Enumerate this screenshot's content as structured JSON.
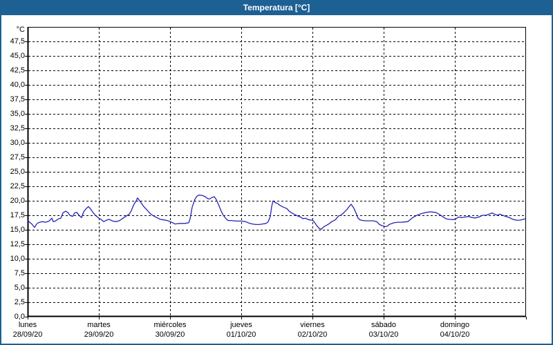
{
  "window": {
    "title": "Temperatura [°C]"
  },
  "colors": {
    "titlebar_bg": "#1d6094",
    "titlebar_text": "#ffffff",
    "window_border": "#1d6094",
    "plot_border": "#000000",
    "grid": "#000000",
    "series_line": "#2121b5",
    "label_text": "#000000",
    "plot_bg": "#ffffff"
  },
  "y_axis": {
    "unit_label": "°C",
    "min": 0,
    "max": 50,
    "tick_step": 2.5,
    "tick_labels": [
      "0,0",
      "2,5",
      "5,0",
      "7,5",
      "10,0",
      "12,5",
      "15,0",
      "17,5",
      "20,0",
      "22,5",
      "25,0",
      "27,5",
      "30,0",
      "32,5",
      "35,0",
      "37,5",
      "40,0",
      "42,5",
      "45,0",
      "47,5"
    ]
  },
  "x_axis": {
    "days": [
      {
        "name": "lunes",
        "date": "28/09/20"
      },
      {
        "name": "martes",
        "date": "29/09/20"
      },
      {
        "name": "miércoles",
        "date": "30/09/20"
      },
      {
        "name": "jueves",
        "date": "01/10/20"
      },
      {
        "name": "viernes",
        "date": "02/10/20"
      },
      {
        "name": "sábado",
        "date": "03/10/20"
      },
      {
        "name": "domingo",
        "date": "04/10/20"
      }
    ]
  },
  "chart_data": {
    "type": "line",
    "title": "Temperatura [°C]",
    "xlabel": "",
    "ylabel": "°C",
    "ylim": [
      0,
      50
    ],
    "y_gridline_step": 2.5,
    "grid": true,
    "legend": false,
    "x_span_days": 7,
    "x_start_label": "lunes 28/09/20",
    "series": [
      {
        "name": "Temperatura",
        "x_unit": "days",
        "points": [
          [
            0,
            16.6
          ],
          [
            0.029,
            16.3
          ],
          [
            0.058,
            16
          ],
          [
            0.097,
            15.4
          ],
          [
            0.126,
            16
          ],
          [
            0.155,
            16.25
          ],
          [
            0.204,
            16.4
          ],
          [
            0.252,
            16.3
          ],
          [
            0.301,
            16.5
          ],
          [
            0.34,
            17
          ],
          [
            0.359,
            16.4
          ],
          [
            0.388,
            16.5
          ],
          [
            0.437,
            16.9
          ],
          [
            0.466,
            17
          ],
          [
            0.495,
            17.9
          ],
          [
            0.534,
            18.2
          ],
          [
            0.563,
            18
          ],
          [
            0.592,
            17.5
          ],
          [
            0.631,
            17.3
          ],
          [
            0.66,
            17.9
          ],
          [
            0.689,
            18
          ],
          [
            0.728,
            17.4
          ],
          [
            0.757,
            17.1
          ],
          [
            0.786,
            18.1
          ],
          [
            0.825,
            18.7
          ],
          [
            0.854,
            19
          ],
          [
            0.883,
            18.6
          ],
          [
            0.922,
            17.9
          ],
          [
            0.951,
            17.5
          ],
          [
            1,
            17
          ],
          [
            1.029,
            16.8
          ],
          [
            1.068,
            16.4
          ],
          [
            1.117,
            16.7
          ],
          [
            1.146,
            16.8
          ],
          [
            1.194,
            16.5
          ],
          [
            1.243,
            16.4
          ],
          [
            1.291,
            16.6
          ],
          [
            1.34,
            17
          ],
          [
            1.388,
            17.4
          ],
          [
            1.427,
            17.7
          ],
          [
            1.456,
            18.3
          ],
          [
            1.485,
            19.2
          ],
          [
            1.524,
            20
          ],
          [
            1.544,
            20.5
          ],
          [
            1.573,
            20
          ],
          [
            1.602,
            19.5
          ],
          [
            1.631,
            19
          ],
          [
            1.67,
            18.5
          ],
          [
            1.699,
            18.1
          ],
          [
            1.728,
            17.7
          ],
          [
            1.767,
            17.4
          ],
          [
            1.816,
            17.1
          ],
          [
            1.864,
            16.8
          ],
          [
            1.913,
            16.7
          ],
          [
            1.961,
            16.6
          ],
          [
            2,
            16.4
          ],
          [
            2.039,
            16.2
          ],
          [
            2.068,
            16
          ],
          [
            2.136,
            16.1
          ],
          [
            2.204,
            16.1
          ],
          [
            2.262,
            16.2
          ],
          [
            2.282,
            16.9
          ],
          [
            2.311,
            18.9
          ],
          [
            2.35,
            20.3
          ],
          [
            2.379,
            20.8
          ],
          [
            2.408,
            21
          ],
          [
            2.456,
            20.9
          ],
          [
            2.495,
            20.7
          ],
          [
            2.524,
            20.4
          ],
          [
            2.553,
            20.3
          ],
          [
            2.592,
            20.6
          ],
          [
            2.621,
            20.7
          ],
          [
            2.65,
            20.2
          ],
          [
            2.689,
            19.1
          ],
          [
            2.718,
            18.2
          ],
          [
            2.748,
            17.5
          ],
          [
            2.786,
            16.9
          ],
          [
            2.816,
            16.6
          ],
          [
            2.864,
            16.6
          ],
          [
            2.932,
            16.5
          ],
          [
            3,
            16.5
          ],
          [
            3.058,
            16.4
          ],
          [
            3.107,
            16.15
          ],
          [
            3.155,
            16
          ],
          [
            3.204,
            15.9
          ],
          [
            3.252,
            15.9
          ],
          [
            3.301,
            16
          ],
          [
            3.35,
            16.1
          ],
          [
            3.379,
            16.4
          ],
          [
            3.408,
            17.3
          ],
          [
            3.427,
            19
          ],
          [
            3.447,
            20
          ],
          [
            3.476,
            19.7
          ],
          [
            3.515,
            19.5
          ],
          [
            3.544,
            19.2
          ],
          [
            3.592,
            18.9
          ],
          [
            3.641,
            18.65
          ],
          [
            3.67,
            18.25
          ],
          [
            3.709,
            17.9
          ],
          [
            3.757,
            17.6
          ],
          [
            3.806,
            17.3
          ],
          [
            3.835,
            17.2
          ],
          [
            3.864,
            16.9
          ],
          [
            3.903,
            17
          ],
          [
            3.932,
            16.8
          ],
          [
            3.961,
            16.7
          ],
          [
            4,
            16.65
          ],
          [
            4.029,
            16.3
          ],
          [
            4.058,
            15.75
          ],
          [
            4.097,
            15.2
          ],
          [
            4.126,
            15.1
          ],
          [
            4.155,
            15.5
          ],
          [
            4.194,
            15.75
          ],
          [
            4.223,
            15.95
          ],
          [
            4.272,
            16.4
          ],
          [
            4.32,
            16.7
          ],
          [
            4.369,
            17.4
          ],
          [
            4.398,
            17.5
          ],
          [
            4.437,
            17.9
          ],
          [
            4.485,
            18.5
          ],
          [
            4.515,
            19
          ],
          [
            4.544,
            19.4
          ],
          [
            4.583,
            18.7
          ],
          [
            4.612,
            17.9
          ],
          [
            4.641,
            17
          ],
          [
            4.67,
            16.7
          ],
          [
            4.709,
            16.6
          ],
          [
            4.757,
            16.55
          ],
          [
            4.854,
            16.55
          ],
          [
            4.903,
            16.4
          ],
          [
            4.942,
            15.9
          ],
          [
            4.981,
            15.7
          ],
          [
            5.019,
            15.55
          ],
          [
            5.049,
            15.6
          ],
          [
            5.078,
            15.9
          ],
          [
            5.117,
            16.1
          ],
          [
            5.146,
            16.2
          ],
          [
            5.194,
            16.3
          ],
          [
            5.243,
            16.3
          ],
          [
            5.291,
            16.35
          ],
          [
            5.34,
            16.4
          ],
          [
            5.379,
            16.8
          ],
          [
            5.408,
            17.1
          ],
          [
            5.466,
            17.5
          ],
          [
            5.534,
            17.8
          ],
          [
            5.602,
            18
          ],
          [
            5.66,
            18.1
          ],
          [
            5.728,
            18
          ],
          [
            5.777,
            17.7
          ],
          [
            5.825,
            17.3
          ],
          [
            5.874,
            16.9
          ],
          [
            5.922,
            16.8
          ],
          [
            5.99,
            16.75
          ],
          [
            6.019,
            16.9
          ],
          [
            6.049,
            17.2
          ],
          [
            6.097,
            17.1
          ],
          [
            6.146,
            17.2
          ],
          [
            6.194,
            17.3
          ],
          [
            6.243,
            17.1
          ],
          [
            6.291,
            17.05
          ],
          [
            6.34,
            17.2
          ],
          [
            6.388,
            17.5
          ],
          [
            6.437,
            17.5
          ],
          [
            6.485,
            17.7
          ],
          [
            6.524,
            17.9
          ],
          [
            6.553,
            17.7
          ],
          [
            6.602,
            17.5
          ],
          [
            6.631,
            17.7
          ],
          [
            6.67,
            17.5
          ],
          [
            6.718,
            17.3
          ],
          [
            6.767,
            17.1
          ],
          [
            6.816,
            16.8
          ],
          [
            6.864,
            16.65
          ],
          [
            6.913,
            16.65
          ],
          [
            6.961,
            16.8
          ],
          [
            6.99,
            16.9
          ]
        ]
      }
    ]
  }
}
